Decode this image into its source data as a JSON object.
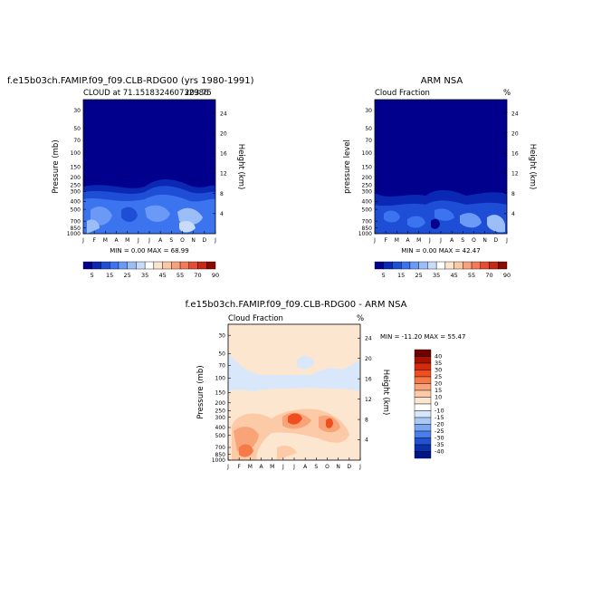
{
  "panels": {
    "top_left": {
      "title": "f.e15b03ch.FAMIP.f09_f09.CLB-RDG00 (yrs 1980-1991)",
      "subtitle_left": "CLOUD at 71.151832460732986",
      "subtitle_right": "203.75",
      "ylabel_left": "Pressure (mb)",
      "ylabel_right": "Height (km)",
      "minmax": "MIN =   0.00  MAX =   68.99"
    },
    "top_right": {
      "title": "ARM NSA",
      "subtitle_left": "Cloud Fraction",
      "subtitle_right": "%",
      "ylabel_left": "pressure level",
      "ylabel_right": "Height (km)",
      "minmax": "MIN =   0.00  MAX =   42.47"
    },
    "bottom": {
      "title": "f.e15b03ch.FAMIP.f09_f09.CLB-RDG00 - ARM NSA",
      "subtitle_left": "Cloud Fraction",
      "subtitle_right": "%",
      "ylabel_left": "Pressure (mb)",
      "ylabel_right": "Height (km)",
      "minmax": "MIN = -11.20  MAX =  55.47"
    }
  },
  "chart_data": [
    {
      "type": "heatmap",
      "title": "f.e15b03ch.FAMIP.f09_f09.CLB-RDG00 (yrs 1980-1991)",
      "x_ticks": [
        "J",
        "F",
        "M",
        "A",
        "M",
        "J",
        "J",
        "A",
        "S",
        "O",
        "N",
        "D",
        "J"
      ],
      "y_ticks_pressure": [
        "30",
        "50",
        "70",
        "100",
        "150",
        "200",
        "250",
        "300",
        "400",
        "500",
        "700",
        "850",
        "1000"
      ],
      "y_ticks_height": [
        "24",
        "20",
        "16",
        "12",
        "8",
        "4"
      ],
      "colorbar_labels": [
        "5",
        "15",
        "25",
        "35",
        "45",
        "55",
        "70",
        "90"
      ],
      "min": 0.0,
      "max": 68.99
    },
    {
      "type": "heatmap",
      "title": "ARM NSA",
      "x_ticks": [
        "J",
        "F",
        "M",
        "A",
        "M",
        "J",
        "J",
        "A",
        "S",
        "O",
        "N",
        "D",
        "J"
      ],
      "y_ticks_pressure": [
        "30",
        "50",
        "70",
        "100",
        "150",
        "200",
        "250",
        "300",
        "400",
        "500",
        "700",
        "850",
        "1000"
      ],
      "y_ticks_height": [
        "24",
        "20",
        "16",
        "12",
        "8",
        "4"
      ],
      "colorbar_labels": [
        "5",
        "15",
        "25",
        "35",
        "45",
        "55",
        "70",
        "90"
      ],
      "min": 0.0,
      "max": 42.47
    },
    {
      "type": "heatmap",
      "title": "f.e15b03ch.FAMIP.f09_f09.CLB-RDG00 - ARM NSA",
      "x_ticks": [
        "J",
        "F",
        "M",
        "A",
        "M",
        "J",
        "J",
        "A",
        "S",
        "O",
        "N",
        "D",
        "J"
      ],
      "y_ticks_pressure": [
        "30",
        "50",
        "70",
        "100",
        "150",
        "200",
        "250",
        "300",
        "400",
        "500",
        "700",
        "850",
        "1000"
      ],
      "y_ticks_height": [
        "24",
        "20",
        "16",
        "12",
        "8",
        "4"
      ],
      "colorbar_labels": [
        "40",
        "35",
        "30",
        "25",
        "20",
        "15",
        "10",
        "0",
        "-10",
        "-15",
        "-20",
        "-25",
        "-30",
        "-35",
        "-40"
      ],
      "min": -11.2,
      "max": 55.47
    }
  ],
  "colors": {
    "abs_scale": [
      "#00008c",
      "#0a28b4",
      "#1e4ed6",
      "#3c74f0",
      "#6a9af6",
      "#9cbef8",
      "#c8dcfa",
      "#ffffff",
      "#fde4cc",
      "#fbc8a4",
      "#f8a27c",
      "#f37a55",
      "#e64b33",
      "#c82814",
      "#8c0a00"
    ],
    "diff_scale": [
      "#6e0000",
      "#a41400",
      "#d42c0a",
      "#f04e1e",
      "#f67a48",
      "#f9a478",
      "#fccaa6",
      "#fde6d0",
      "#ffffff",
      "#d8e8fa",
      "#aacaf6",
      "#7aa6f2",
      "#4a7eea",
      "#2252d2",
      "#0a30aa",
      "#00148a"
    ]
  }
}
